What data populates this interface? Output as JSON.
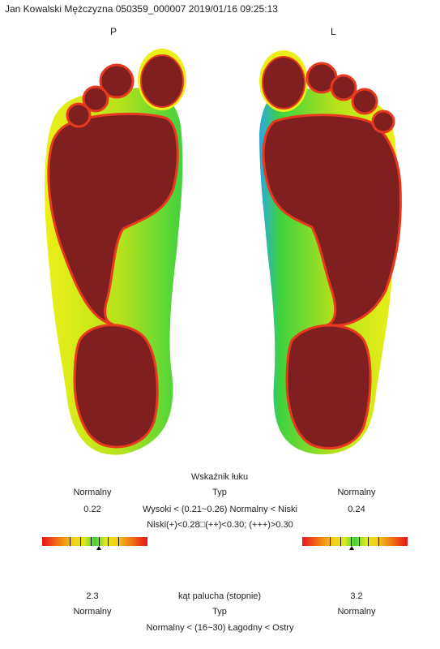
{
  "header": "Jan Kowalski Mężczyzna 050359_000007 2019/01/16 09:25:13",
  "feet": {
    "right_label": "P",
    "left_label": "L"
  },
  "arch": {
    "title": "Wskaźnik łuku",
    "right_class": "Normalny",
    "left_class": "Normalny",
    "type_label": "Typ",
    "right_value": "0.22",
    "left_value": "0.24",
    "scale_line1": "Wysoki < (0.21~0.26) Normalny < Niski",
    "scale_line2": "Niski(+)<0.28□(++)<0.30; (+++)>0.30",
    "right_marker_fraction": 0.54,
    "left_marker_fraction": 0.47
  },
  "hallux": {
    "right_value": "2.3",
    "title": "kąt palucha (stopnie)",
    "left_value": "3.2",
    "right_class": "Normalny",
    "type_label": "Typ",
    "left_class": "Normalny",
    "scale_line": "Normalny < (16~30) Łagodny < Ostry"
  },
  "colors": {
    "contact_red": "#7f1f1f",
    "edge_red": "#e8391f",
    "mid_yellow": "#ecf018",
    "mid_green": "#3fd33f",
    "low_blue": "#2aa6e0"
  }
}
